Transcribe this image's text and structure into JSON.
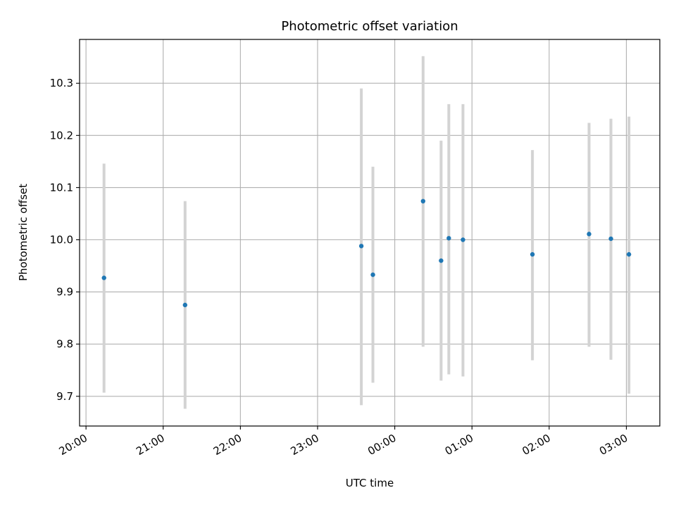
{
  "chart_data": {
    "type": "scatter",
    "title": "Photometric offset variation",
    "xlabel": "UTC time",
    "ylabel": "Photometric offset",
    "x_tick_labels": [
      "20:00",
      "21:00",
      "22:00",
      "23:00",
      "00:00",
      "01:00",
      "02:00",
      "03:00"
    ],
    "y_ticks": [
      9.7,
      9.8,
      9.9,
      10.0,
      10.1,
      10.2,
      10.3
    ],
    "y_tick_labels": [
      "9.7",
      "9.8",
      "9.9",
      "10.0",
      "10.1",
      "10.2",
      "10.3"
    ],
    "ylim": [
      9.643,
      10.384
    ],
    "xlim": [
      "19:55",
      "03:26"
    ],
    "grid": true,
    "marker_color": "#1f77b4",
    "errorbar_color": "#d3d3d3",
    "series": [
      {
        "x": [
          "20:14",
          "21:17",
          "23:34",
          "23:43",
          "00:22",
          "00:36",
          "00:42",
          "00:53",
          "01:47",
          "02:31",
          "02:48",
          "03:02"
        ],
        "y": [
          9.927,
          9.875,
          9.988,
          9.933,
          10.074,
          9.96,
          10.003,
          10.0,
          9.972,
          10.011,
          10.002,
          9.972
        ],
        "yerr_low": [
          9.707,
          9.676,
          9.683,
          9.726,
          9.795,
          9.73,
          9.742,
          9.738,
          9.769,
          9.795,
          9.77,
          9.705
        ],
        "yerr_high": [
          10.146,
          10.074,
          10.29,
          10.14,
          10.352,
          10.19,
          10.26,
          10.26,
          10.172,
          10.224,
          10.232,
          10.236
        ]
      }
    ]
  }
}
